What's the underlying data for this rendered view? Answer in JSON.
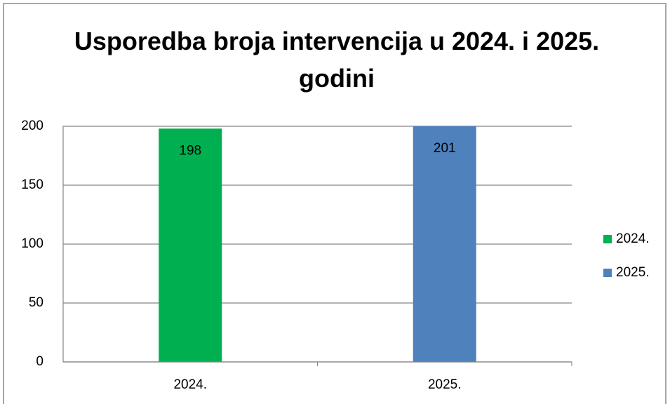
{
  "chart_data": {
    "type": "bar",
    "title": "Usporedba broja intervencija u 2024. i 2025. godini",
    "categories": [
      "2024.",
      "2025."
    ],
    "series": [
      {
        "name": "2024.",
        "color": "#00b050",
        "values": [
          198,
          null
        ]
      },
      {
        "name": "2025.",
        "color": "#4f81bd",
        "values": [
          null,
          201
        ]
      }
    ],
    "ylim": [
      0,
      200
    ],
    "yticks": [
      0,
      50,
      100,
      150,
      200
    ],
    "grid": true,
    "legend": "right"
  }
}
